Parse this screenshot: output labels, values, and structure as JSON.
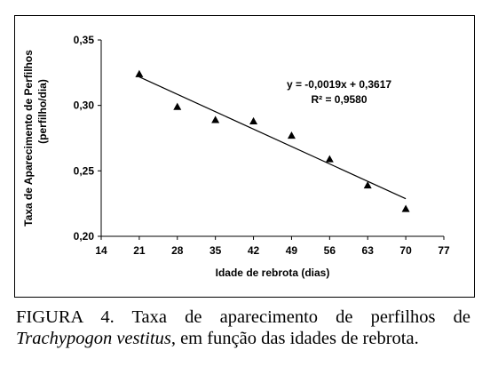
{
  "chart_data": {
    "type": "scatter",
    "x": [
      21,
      28,
      35,
      42,
      49,
      56,
      63,
      70
    ],
    "y": [
      0.324,
      0.299,
      0.289,
      0.288,
      0.277,
      0.259,
      0.239,
      0.221
    ],
    "ylabel": "Taxa de Aparecimento de Perfilhos",
    "ylabel_line2": "(perfilho/dia)",
    "xlabel": "Idade de rebrota (dias)",
    "xlim": [
      14,
      77
    ],
    "ylim": [
      0.2,
      0.35
    ],
    "xticks": [
      "14",
      "21",
      "28",
      "35",
      "42",
      "49",
      "56",
      "63",
      "70",
      "77"
    ],
    "yticks": [
      "0,20",
      "0,25",
      "0,30",
      "0,35"
    ],
    "trendline": {
      "slope": -0.0019,
      "intercept": 0.3617,
      "x_range": [
        21,
        70
      ]
    },
    "equation": "y = -0,0019x + 0,3617",
    "r_squared": "R² = 0,9580",
    "marker": "triangle",
    "grid": false
  },
  "caption": {
    "prefix": "FIGURA 4. Taxa de aparecimento de perfilhos de ",
    "species": "Trachypogon vestitus",
    "suffix": ", em função das idades de rebrota."
  }
}
